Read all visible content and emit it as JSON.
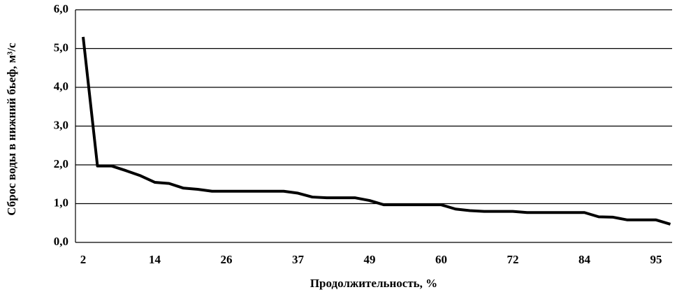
{
  "chart_data": {
    "type": "line",
    "x_label": "Продолжительность, %",
    "y_label": "Сброс воды в нижний бьеф, м³/с",
    "categories": [
      "2",
      null,
      null,
      null,
      null,
      "14",
      null,
      null,
      null,
      null,
      "26",
      null,
      null,
      null,
      null,
      "37",
      null,
      null,
      null,
      null,
      "49",
      null,
      null,
      null,
      null,
      "60",
      null,
      null,
      null,
      null,
      "72",
      null,
      null,
      null,
      null,
      "84",
      null,
      null,
      null,
      null,
      "95",
      null
    ],
    "values": [
      5.3,
      1.97,
      1.97,
      1.85,
      1.72,
      1.55,
      1.52,
      1.4,
      1.37,
      1.32,
      1.32,
      1.32,
      1.32,
      1.32,
      1.32,
      1.27,
      1.17,
      1.15,
      1.15,
      1.15,
      1.08,
      0.97,
      0.97,
      0.97,
      0.97,
      0.97,
      0.86,
      0.82,
      0.8,
      0.8,
      0.8,
      0.77,
      0.77,
      0.77,
      0.77,
      0.77,
      0.66,
      0.65,
      0.58,
      0.58,
      0.58,
      0.47
    ],
    "color": "#000000",
    "ylim": [
      0,
      6
    ],
    "yticks": [
      {
        "value": 0,
        "label": "0,0"
      },
      {
        "value": 1,
        "label": "1,0"
      },
      {
        "value": 2,
        "label": "2,0"
      },
      {
        "value": 3,
        "label": "3,0"
      },
      {
        "value": 4,
        "label": "4,0"
      },
      {
        "value": 5,
        "label": "5,0"
      },
      {
        "value": 6,
        "label": "6,0"
      }
    ],
    "grid": true
  }
}
